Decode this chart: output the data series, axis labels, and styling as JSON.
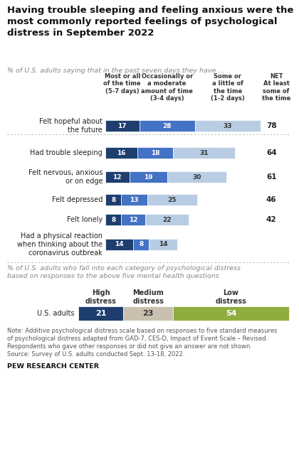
{
  "title": "Having trouble sleeping and feeling anxious were the\nmost commonly reported feelings of psychological\ndistress in September 2022",
  "subtitle1": "% of U.S. adults saying that in the past seven days they have ...",
  "subtitle2": "% of U.S. adults who fall into each category of psychological distress\nbased on responses to the above five mental health questions",
  "note": "Note: Additive psychological distress scale based on responses to five standard measures\nof psychological distress adapted from GAD-7, CES-D, Impact of Event Scale – Revised.\nRespondents who gave other responses or did not give an answer are not shown.\nSource: Survey of U.S. adults conducted Sept. 13-18, 2022.",
  "source": "PEW RESEARCH CENTER",
  "col_headers": [
    "Most or all\nof the time\n(5-7 days)",
    "Occasionally or\na moderate\namount of time\n(3-4 days)",
    "Some or\na little of\nthe time\n(1-2 days)",
    "NET\nAt least\nsome of\nthe time"
  ],
  "rows": [
    {
      "label": "Felt hopeful about\nthe future",
      "v1": 17,
      "v2": 28,
      "v3": 33,
      "net": 78,
      "separator_after": true
    },
    {
      "label": "Had trouble sleeping",
      "v1": 16,
      "v2": 18,
      "v3": 31,
      "net": 64,
      "separator_after": false
    },
    {
      "label": "Felt nervous, anxious\nor on edge",
      "v1": 12,
      "v2": 19,
      "v3": 30,
      "net": 61,
      "separator_after": false
    },
    {
      "label": "Felt depressed",
      "v1": 8,
      "v2": 13,
      "v3": 25,
      "net": 46,
      "separator_after": false
    },
    {
      "label": "Felt lonely",
      "v1": 8,
      "v2": 12,
      "v3": 22,
      "net": 42,
      "separator_after": false
    },
    {
      "label": "Had a physical reaction\nwhen thinking about the\ncoronavirus outbreak",
      "v1": 14,
      "v2": 8,
      "v3": 14,
      "net": null,
      "separator_after": false
    }
  ],
  "distress_row": {
    "label": "U.S. adults",
    "high": 21,
    "medium": 23,
    "low": 54
  },
  "distress_headers": [
    "High\ndistress",
    "Medium\ndistress",
    "Low\ndistress"
  ],
  "color_dark_blue": "#1e3f6e",
  "color_mid_blue": "#4472c4",
  "color_light_blue": "#b8cce4",
  "color_high": "#1e3f6e",
  "color_medium": "#c9c0b0",
  "color_low": "#8fad3e",
  "bg_color": "#ffffff"
}
